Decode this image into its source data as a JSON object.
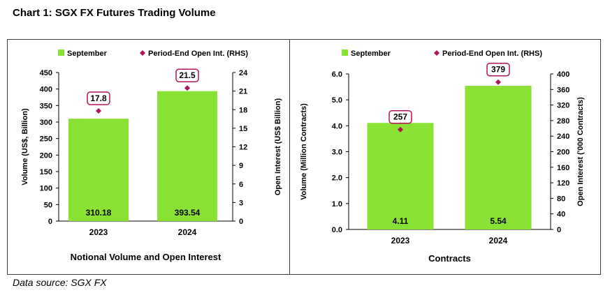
{
  "title": "Chart 1: SGX FX Futures Trading Volume",
  "source": "Data source: SGX FX",
  "colors": {
    "bar": "#8ae234",
    "marker": "#b0155a",
    "axis": "#000000"
  },
  "chart_data": [
    {
      "type": "bar",
      "subtitle": "Notional Volume and Open Interest",
      "categories": [
        "2023",
        "2024"
      ],
      "series": [
        {
          "name": "September",
          "axis": "left",
          "values": [
            310.18,
            393.54
          ],
          "value_labels": [
            "310.18",
            "393.54"
          ]
        },
        {
          "name": "Period-End Open Int. (RHS)",
          "axis": "right",
          "marker": "diamond",
          "values": [
            17.8,
            21.5
          ],
          "value_labels": [
            "17.8",
            "21.5"
          ]
        }
      ],
      "ylabel": "Volume (US$, Billion)",
      "y2label": "Open Interest (US$ Billion)",
      "ylim": [
        0,
        450
      ],
      "y2lim": [
        0,
        24
      ],
      "yticks": [
        "0",
        "50",
        "100",
        "150",
        "200",
        "250",
        "300",
        "350",
        "400",
        "450"
      ],
      "y2ticks": [
        "0",
        "3",
        "6",
        "9",
        "12",
        "15",
        "18",
        "21",
        "24"
      ],
      "legend": "top"
    },
    {
      "type": "bar",
      "subtitle": "Contracts",
      "categories": [
        "2023",
        "2024"
      ],
      "series": [
        {
          "name": "September",
          "axis": "left",
          "values": [
            4.11,
            5.54
          ],
          "value_labels": [
            "4.11",
            "5.54"
          ]
        },
        {
          "name": "Period-End Open Int. (RHS)",
          "axis": "right",
          "marker": "diamond",
          "values": [
            257,
            379
          ],
          "value_labels": [
            "257",
            "379"
          ]
        }
      ],
      "ylabel": "Volume (Million Contracts)",
      "y2label": "Open Interest ('000 Contracts)",
      "ylim": [
        0,
        6
      ],
      "y2lim": [
        0,
        400
      ],
      "yticks": [
        "0.0",
        "1.0",
        "2.0",
        "3.0",
        "4.0",
        "5.0",
        "6.0"
      ],
      "y2ticks": [
        "0",
        "40",
        "80",
        "120",
        "160",
        "200",
        "240",
        "280",
        "320",
        "360",
        "400"
      ],
      "legend": "top"
    }
  ]
}
